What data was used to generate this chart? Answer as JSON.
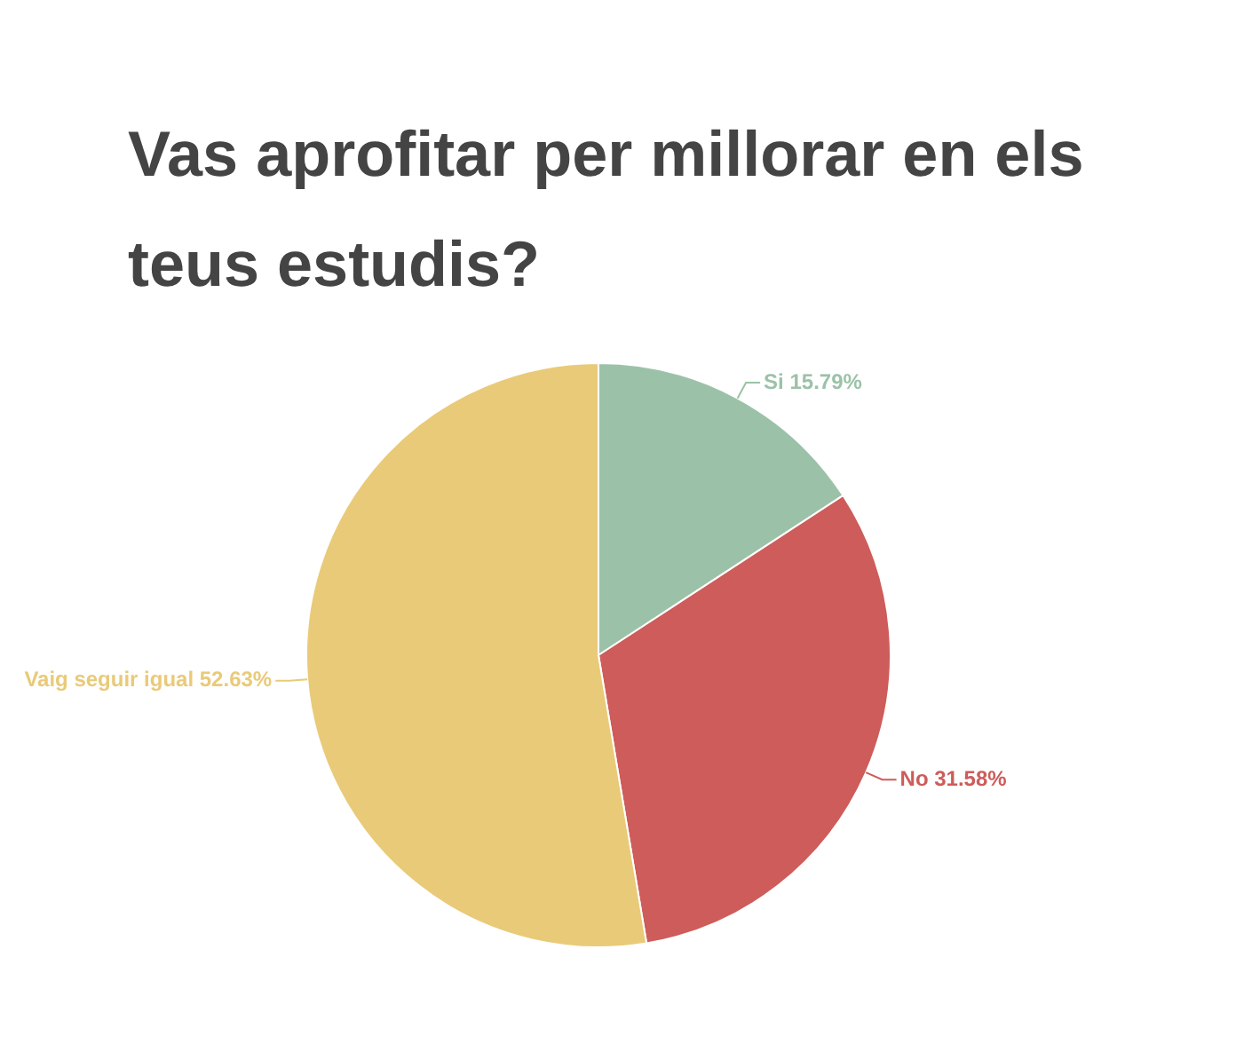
{
  "chart_data": {
    "type": "pie",
    "title": "Vas aprofitar per millorar en els teus estudis?",
    "categories": [
      "Si",
      "No",
      "Vaig seguir igual"
    ],
    "values": [
      15.79,
      31.58,
      52.63
    ],
    "colors": [
      "#9bc2a8",
      "#cd5c5a",
      "#e9ca78"
    ],
    "value_labels": [
      "15.79%",
      "31.58%",
      "52.63%"
    ],
    "legend": false
  }
}
